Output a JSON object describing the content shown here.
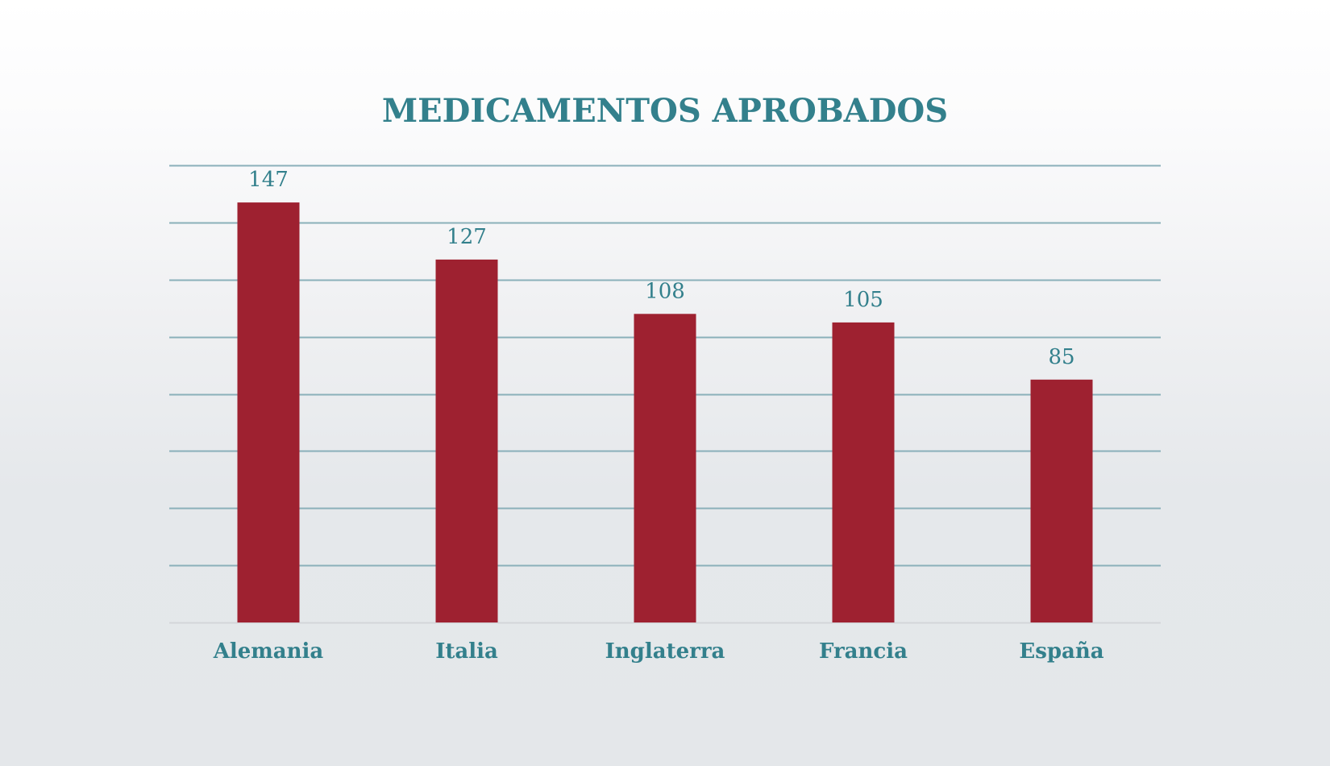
{
  "colors": {
    "accent": "#33808c",
    "bar": "#9e2130",
    "gridline": "#8ab0ba",
    "baseline": "#d3d6d9"
  },
  "chart_data": {
    "type": "bar",
    "title": "MEDICAMENTOS APROBADOS",
    "xlabel": "",
    "ylabel": "",
    "categories": [
      "Alemania",
      "Italia",
      "Inglaterra",
      "Francia",
      "España"
    ],
    "values": [
      147,
      127,
      108,
      105,
      85
    ],
    "data_labels": [
      "147",
      "127",
      "108",
      "105",
      "85"
    ],
    "ylim": [
      0,
      160
    ],
    "grid": true,
    "y_tick_labels_visible": false,
    "legend": "none"
  }
}
